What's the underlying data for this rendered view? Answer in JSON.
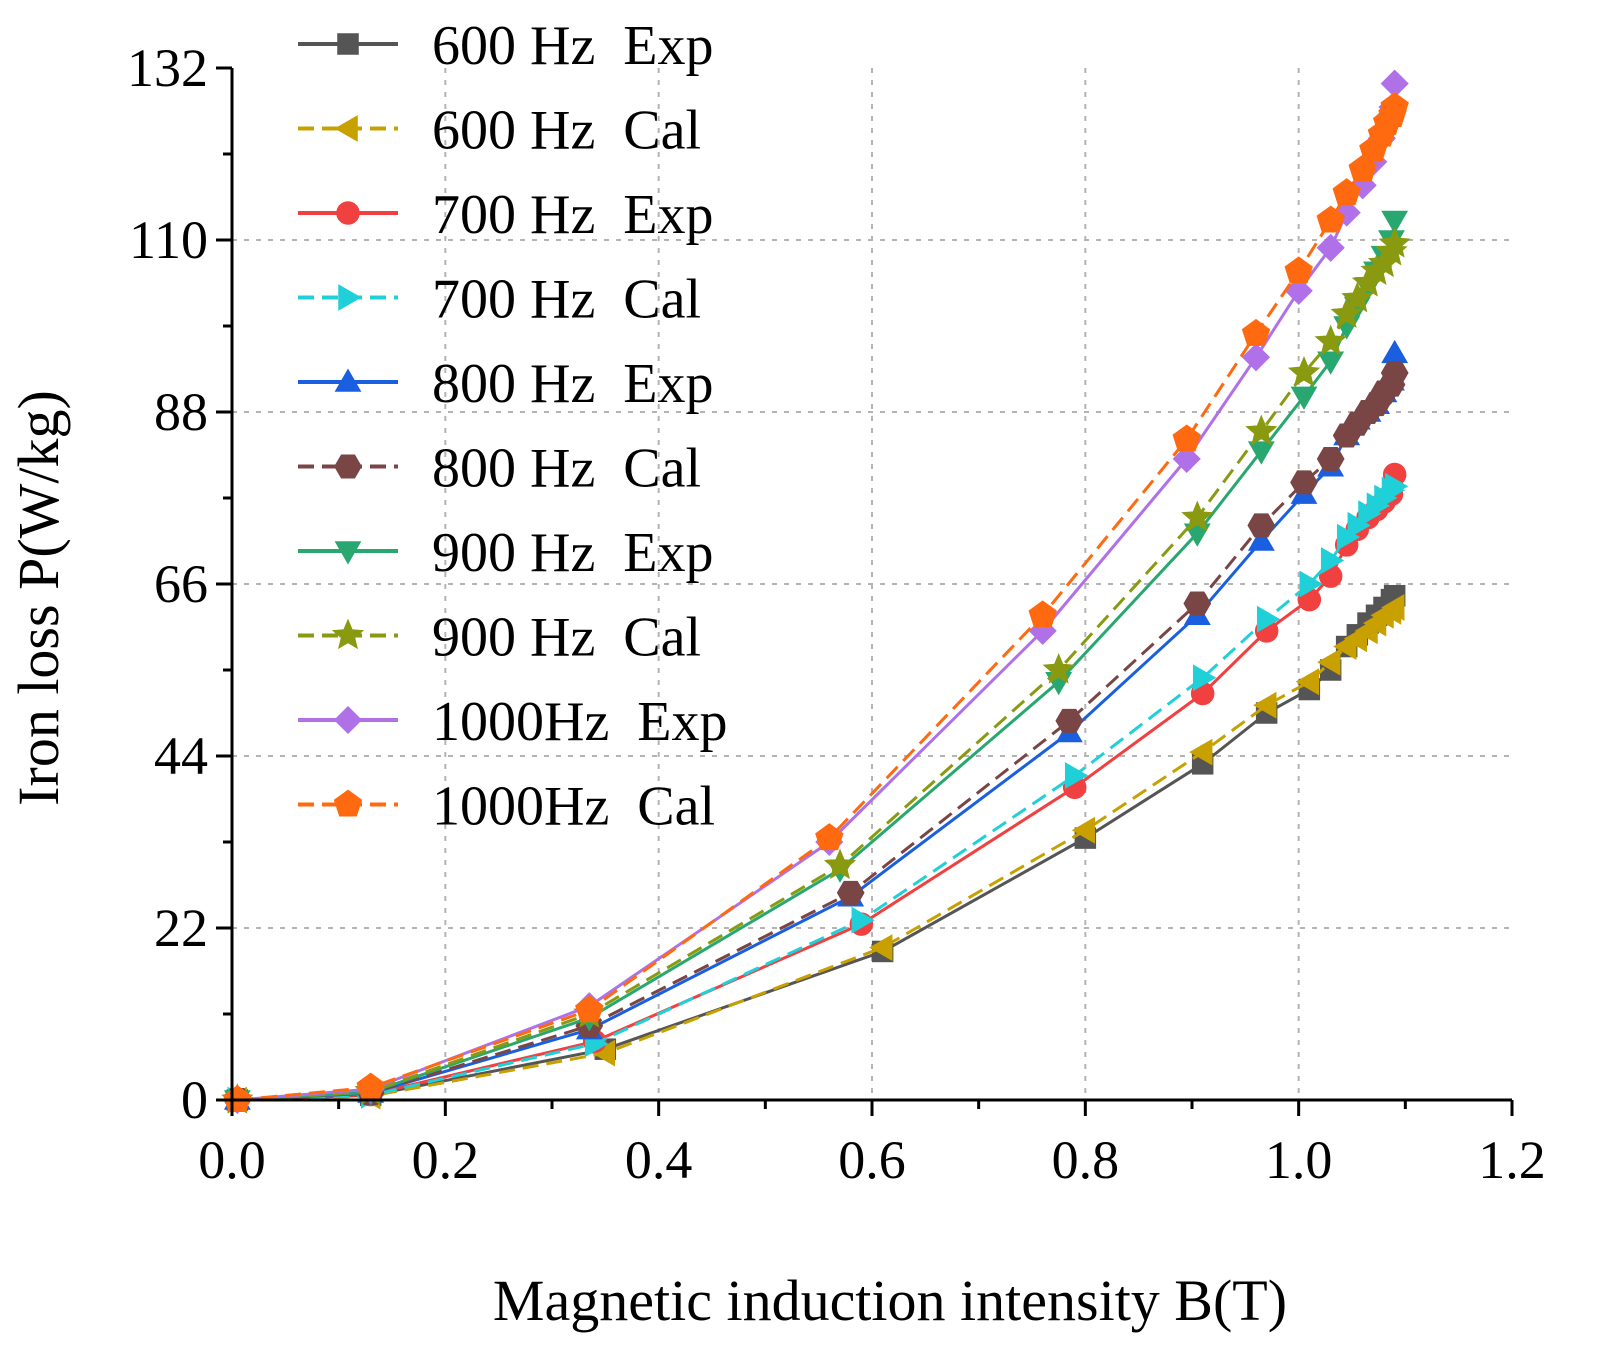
{
  "chart_data": {
    "type": "line",
    "title": "",
    "xlabel": "Magnetic induction intensity B(T)",
    "ylabel": "Iron loss P(W/kg)",
    "xlim": [
      0,
      1.2
    ],
    "ylim": [
      0,
      132
    ],
    "xticks": [
      "0.0",
      "0.2",
      "0.4",
      "0.6",
      "0.8",
      "1.0",
      "1.2"
    ],
    "yticks": [
      "0",
      "22",
      "44",
      "66",
      "88",
      "110",
      "132"
    ],
    "grid": true,
    "legend_position": "top-left",
    "series": [
      {
        "name": "600 Hz  Exp",
        "color": "#555555",
        "dash": "solid",
        "marker": "square",
        "x": [
          0.005,
          0.13,
          0.35,
          0.61,
          0.8,
          0.91,
          0.97,
          1.01,
          1.03,
          1.045,
          1.055,
          1.065,
          1.073,
          1.08,
          1.087,
          1.09
        ],
        "y": [
          0,
          0.6,
          6.5,
          19.0,
          33.5,
          43.0,
          49.5,
          52.5,
          55.0,
          58.0,
          59.5,
          61.0,
          62.0,
          63.0,
          64.0,
          64.5
        ]
      },
      {
        "name": "600 Hz  Cal",
        "color": "#c8a000",
        "dash": "dashed",
        "marker": "triangle-left",
        "x": [
          0.005,
          0.13,
          0.35,
          0.61,
          0.8,
          0.91,
          0.97,
          1.01,
          1.03,
          1.045,
          1.055,
          1.065,
          1.073,
          1.08,
          1.087,
          1.09
        ],
        "y": [
          0,
          0.5,
          6.0,
          19.5,
          34.5,
          44.5,
          50.5,
          53.5,
          56.0,
          58.0,
          59.0,
          60.0,
          61.0,
          62.0,
          62.5,
          63.0
        ]
      },
      {
        "name": "700 Hz  Exp",
        "color": "#f04040",
        "dash": "solid",
        "marker": "circle",
        "x": [
          0.005,
          0.13,
          0.34,
          0.59,
          0.79,
          0.91,
          0.97,
          1.01,
          1.03,
          1.045,
          1.055,
          1.065,
          1.073,
          1.08,
          1.087,
          1.09
        ],
        "y": [
          0,
          0.7,
          7.5,
          22.5,
          40.0,
          52.0,
          60.0,
          64.0,
          67.0,
          71.0,
          73.0,
          74.5,
          75.5,
          76.5,
          77.5,
          80.0
        ]
      },
      {
        "name": "700 Hz  Cal",
        "color": "#20d0d8",
        "dash": "dashed",
        "marker": "triangle-right",
        "x": [
          0.005,
          0.13,
          0.34,
          0.59,
          0.79,
          0.91,
          0.97,
          1.01,
          1.03,
          1.045,
          1.055,
          1.065,
          1.073,
          1.08,
          1.087,
          1.09
        ],
        "y": [
          0,
          0.6,
          7.2,
          23.0,
          41.5,
          54.0,
          61.5,
          66.0,
          69.0,
          72.0,
          73.5,
          75.0,
          76.0,
          77.0,
          78.0,
          78.5
        ]
      },
      {
        "name": "800 Hz  Exp",
        "color": "#1a5fe0",
        "dash": "solid",
        "marker": "triangle-up",
        "x": [
          0.005,
          0.13,
          0.335,
          0.58,
          0.785,
          0.905,
          0.965,
          1.005,
          1.03,
          1.045,
          1.055,
          1.065,
          1.073,
          1.08,
          1.087,
          1.09
        ],
        "y": [
          0,
          0.9,
          9.0,
          26.0,
          47.0,
          62.0,
          71.5,
          77.5,
          81.0,
          85.0,
          87.0,
          88.0,
          89.0,
          90.5,
          92.0,
          95.5
        ]
      },
      {
        "name": "800 Hz  Cal",
        "color": "#7a4545",
        "dash": "dashed",
        "marker": "hexagon",
        "x": [
          0.005,
          0.13,
          0.335,
          0.58,
          0.785,
          0.905,
          0.965,
          1.005,
          1.03,
          1.045,
          1.055,
          1.065,
          1.073,
          1.08,
          1.087,
          1.09
        ],
        "y": [
          0,
          0.9,
          9.5,
          26.5,
          48.5,
          63.5,
          73.5,
          79.0,
          82.0,
          85.0,
          86.5,
          88.0,
          89.0,
          90.5,
          91.5,
          93.0
        ]
      },
      {
        "name": "900 Hz  Exp",
        "color": "#28a870",
        "dash": "solid",
        "marker": "triangle-down",
        "x": [
          0.005,
          0.13,
          0.335,
          0.57,
          0.775,
          0.905,
          0.965,
          1.005,
          1.03,
          1.045,
          1.055,
          1.065,
          1.073,
          1.08,
          1.087,
          1.09
        ],
        "y": [
          0,
          1.0,
          10.5,
          29.5,
          53.5,
          72.5,
          83.0,
          90.0,
          94.5,
          99.0,
          101.5,
          104.0,
          106.0,
          108.0,
          110.0,
          112.5
        ]
      },
      {
        "name": "900 Hz  Cal",
        "color": "#8a9a10",
        "dash": "dashed",
        "marker": "star",
        "x": [
          0.005,
          0.13,
          0.335,
          0.57,
          0.775,
          0.905,
          0.965,
          1.005,
          1.03,
          1.045,
          1.055,
          1.065,
          1.073,
          1.08,
          1.087,
          1.09
        ],
        "y": [
          0,
          1.1,
          11.0,
          30.0,
          55.0,
          74.5,
          85.5,
          93.0,
          97.0,
          100.5,
          102.5,
          104.5,
          106.0,
          107.0,
          108.5,
          109.5
        ]
      },
      {
        "name": "1000Hz  Exp",
        "color": "#b070e8",
        "dash": "solid",
        "marker": "diamond",
        "x": [
          0.005,
          0.13,
          0.335,
          0.56,
          0.76,
          0.895,
          0.96,
          1.0,
          1.03,
          1.045,
          1.06,
          1.07,
          1.078,
          1.083,
          1.088,
          1.09
        ],
        "y": [
          0,
          1.4,
          12.0,
          33.0,
          60.0,
          82.0,
          95.0,
          103.5,
          109.0,
          113.5,
          117.0,
          120.0,
          123.0,
          125.5,
          127.0,
          130.0
        ]
      },
      {
        "name": "1000Hz  Cal",
        "color": "#ff6a10",
        "dash": "dashed",
        "marker": "pentagon",
        "x": [
          0.005,
          0.13,
          0.335,
          0.56,
          0.76,
          0.895,
          0.96,
          1.0,
          1.03,
          1.045,
          1.06,
          1.07,
          1.078,
          1.083,
          1.088,
          1.09
        ],
        "y": [
          0,
          1.6,
          11.5,
          33.5,
          62.0,
          84.5,
          98.0,
          106.0,
          112.5,
          116.0,
          119.0,
          121.5,
          123.5,
          125.0,
          126.0,
          127.0
        ]
      }
    ]
  }
}
